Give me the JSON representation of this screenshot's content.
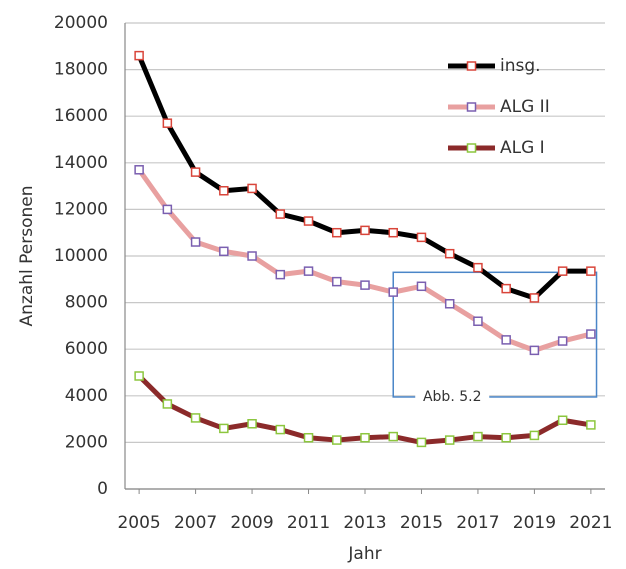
{
  "chart_data": {
    "type": "line",
    "x_label": "Jahr",
    "y_label": "Anzahl Personen",
    "x": [
      2005,
      2006,
      2007,
      2008,
      2009,
      2010,
      2011,
      2012,
      2013,
      2014,
      2015,
      2016,
      2017,
      2018,
      2019,
      2020,
      2021
    ],
    "series": [
      {
        "name": "insg.",
        "color": "#000000",
        "marker_color": "#d9453a",
        "values": [
          18600,
          15700,
          13600,
          12800,
          12900,
          11800,
          11500,
          11000,
          11100,
          11000,
          10800,
          10100,
          9500,
          8600,
          8200,
          9350,
          9350
        ]
      },
      {
        "name": "ALG II",
        "color": "#e8a0a0",
        "marker_color": "#7a5fb0",
        "values": [
          13700,
          12000,
          10600,
          10200,
          10000,
          9200,
          9350,
          8900,
          8750,
          8450,
          8700,
          7950,
          7200,
          6400,
          5950,
          6350,
          6650
        ]
      },
      {
        "name": "ALG I",
        "color": "#8b2a2a",
        "marker_color": "#8cc63e",
        "values": [
          4850,
          3650,
          3050,
          2600,
          2800,
          2550,
          2200,
          2100,
          2200,
          2250,
          2000,
          2100,
          2250,
          2200,
          2300,
          2950,
          2750
        ]
      }
    ],
    "xlim": [
      2004.5,
      2021.5
    ],
    "xticks": [
      2005,
      2007,
      2009,
      2011,
      2013,
      2015,
      2017,
      2019,
      2021
    ],
    "ylim": [
      0,
      20000
    ],
    "yticks": [
      0,
      2000,
      4000,
      6000,
      8000,
      10000,
      12000,
      14000,
      16000,
      18000,
      20000
    ],
    "grid": true,
    "legend": "upper right",
    "annotation": {
      "text": "Abb. 5.2",
      "color": "#4a86c8",
      "x": [
        2014,
        2021.2
      ],
      "y": [
        3950,
        9300
      ]
    }
  }
}
